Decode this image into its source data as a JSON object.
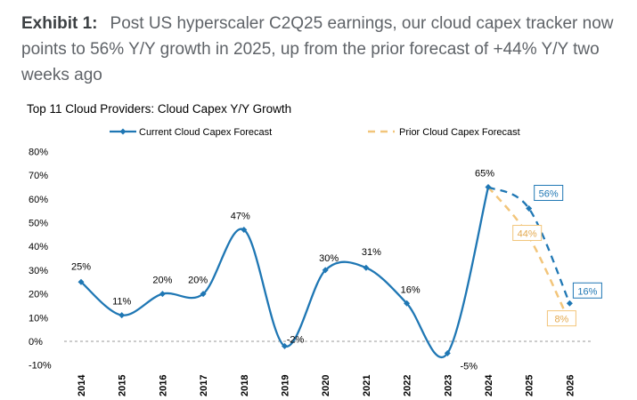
{
  "header": {
    "exhibit_label": "Exhibit 1:",
    "exhibit_text": "Post US hyperscaler C2Q25 earnings, our cloud capex tracker now points to 56% Y/Y growth in 2025, up from the prior forecast of +44% Y/Y two weeks ago"
  },
  "chart_data": {
    "type": "line",
    "title": "Top 11 Cloud Providers: Cloud Capex Y/Y Growth",
    "categories": [
      "2014",
      "2015",
      "2016",
      "2017",
      "2018",
      "2019",
      "2020",
      "2021",
      "2022",
      "2023",
      "2024",
      "2025",
      "2026"
    ],
    "series": [
      {
        "name": "Current Cloud Capex Forecast",
        "values": [
          25,
          11,
          20,
          20,
          47,
          -2,
          30,
          31,
          16,
          -5,
          65,
          56,
          16
        ],
        "labels": [
          "25%",
          "11%",
          "20%",
          "20%",
          "47%",
          "-2%",
          "30%",
          "31%",
          "16%",
          "-5%",
          "65%",
          "56%",
          "16%"
        ],
        "color": "#1f77b4",
        "forecast_from": "2024"
      },
      {
        "name": "Prior Cloud Capex Forecast",
        "x": [
          "2024",
          "2025",
          "2026"
        ],
        "values": [
          65,
          44,
          8
        ],
        "labels": [
          "",
          "44%",
          "8%"
        ],
        "color": "#f2c57a",
        "style": "dashed"
      }
    ],
    "ylim": [
      -10,
      80
    ],
    "yticks": [
      -10,
      0,
      10,
      20,
      30,
      40,
      50,
      60,
      70,
      80
    ],
    "ytick_labels": [
      "-10%",
      "0%",
      "10%",
      "20%",
      "30%",
      "40%",
      "50%",
      "60%",
      "70%",
      "80%"
    ],
    "legend_position": "top",
    "zero_line": "dashed"
  }
}
